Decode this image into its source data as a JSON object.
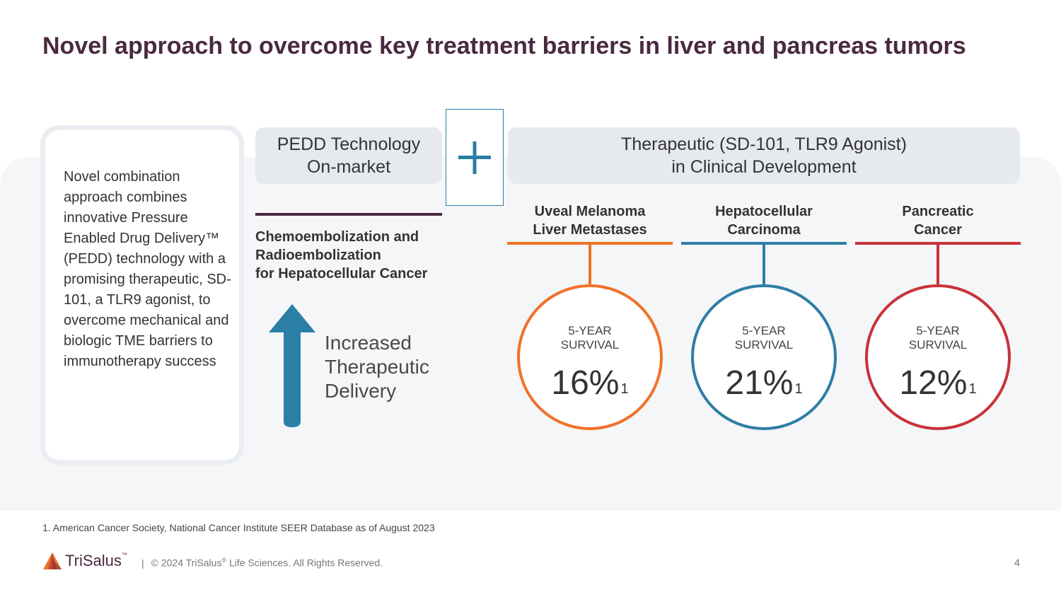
{
  "title": "Novel approach to overcome key treatment barriers in liver and pancreas tumors",
  "intro_text": "Novel combination approach combines innovative Pressure Enabled Drug Delivery™ (PEDD) technology with a promising therapeutic, SD-101, a TLR9 agonist, to overcome mechanical and biologic TME barriers to immunotherapy success",
  "pedd": {
    "line1": "PEDD Technology",
    "line2": "On-market",
    "sub_line1": "Chemoembolization and",
    "sub_line2": "Radioembolization",
    "sub_line3": "for Hepatocellular Cancer",
    "arrow_line1": "Increased",
    "arrow_line2": "Therapeutic",
    "arrow_line3": "Delivery",
    "arrow_color": "#2b7ea6"
  },
  "therapeutic": {
    "line1": "Therapeutic (SD-101, TLR9 Agonist)",
    "line2": "in Clinical Development"
  },
  "columns": [
    {
      "name_line1": "Uveal Melanoma",
      "name_line2": "Liver Metastases",
      "label_line1": "5-YEAR",
      "label_line2": "SURVIVAL",
      "value": "16%",
      "footnote_ref": "1",
      "color": "#f07229"
    },
    {
      "name_line1": "Hepatocellular",
      "name_line2": "Carcinoma",
      "label_line1": "5-YEAR",
      "label_line2": "SURVIVAL",
      "value": "21%",
      "footnote_ref": "1",
      "color": "#2e7ea5"
    },
    {
      "name_line1": "Pancreatic",
      "name_line2": "Cancer",
      "label_line1": "5-YEAR",
      "label_line2": "SURVIVAL",
      "value": "12%",
      "footnote_ref": "1",
      "color": "#c8333a"
    }
  ],
  "footnote": "1. American Cancer Society, National Cancer Institute SEER Database as of August 2023",
  "footer": {
    "logo_text": "TriSalus",
    "logo_tm": "™",
    "separator": "|",
    "copyright_pre": "© 2024 TriSalus",
    "copyright_reg": "®",
    "copyright_post": " Life Sciences. All Rights Reserved.",
    "page_number": "4"
  }
}
